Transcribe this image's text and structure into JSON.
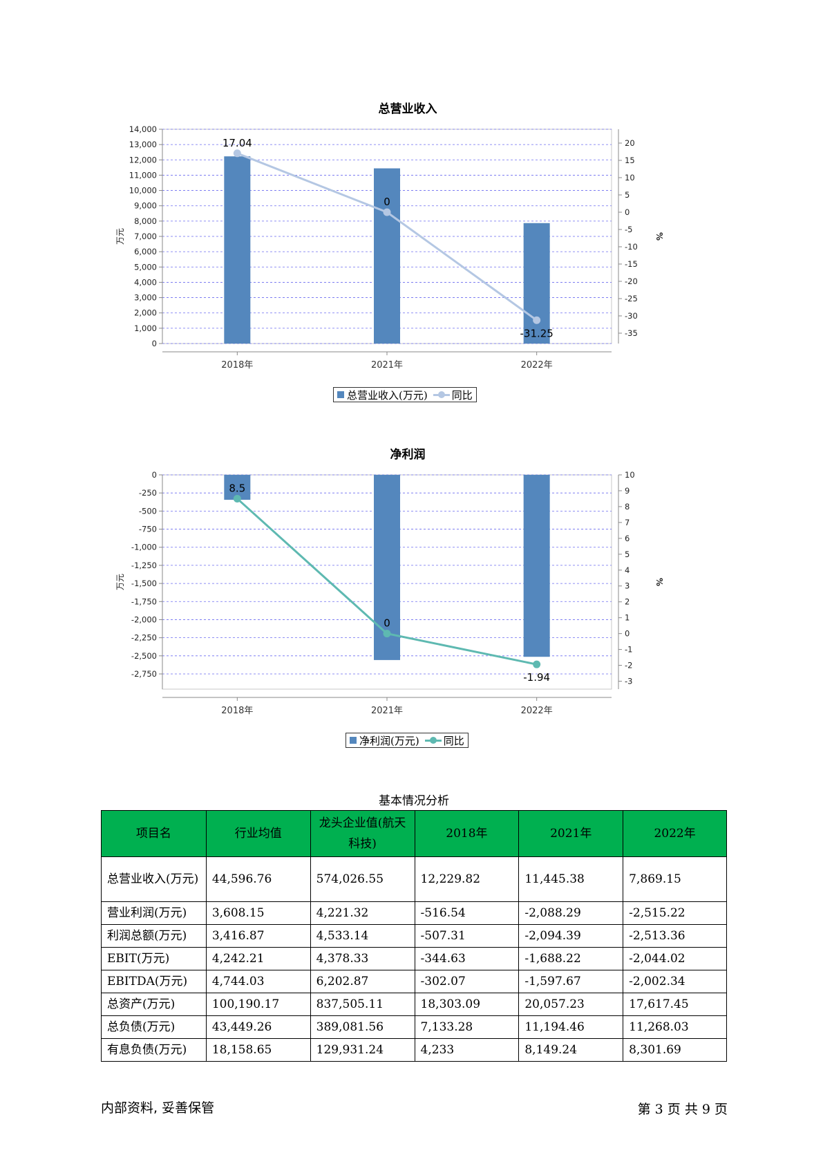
{
  "charts": {
    "revenue": {
      "title": "总营业收入",
      "legend_bar": "总营业收入(万元)",
      "legend_line": "同比",
      "bar_color": "#5487bd",
      "line_color": "#b4c7e3"
    },
    "profit": {
      "title": "净利润",
      "legend_bar": "净利润(万元)",
      "legend_line": "同比",
      "bar_color": "#5487bd",
      "line_color": "#5eb9b1"
    }
  },
  "chart_data": [
    {
      "type": "bar",
      "title": "总营业收入",
      "categories": [
        "2018年",
        "2021年",
        "2022年"
      ],
      "series": [
        {
          "name": "总营业收入(万元)",
          "axis": "left",
          "values": [
            12229.82,
            11445.38,
            7869.15
          ]
        },
        {
          "name": "同比",
          "type": "line",
          "axis": "right",
          "values": [
            17.04,
            0,
            -31.25
          ],
          "labels": [
            "17.04",
            "0",
            "-31.25"
          ]
        }
      ],
      "ylabel": "万元",
      "y2label": "%",
      "ylim": [
        0,
        14000
      ],
      "yticks": [
        "0",
        "1,000",
        "2,000",
        "3,000",
        "4,000",
        "5,000",
        "6,000",
        "7,000",
        "8,000",
        "9,000",
        "10,000",
        "11,000",
        "12,000",
        "13,000",
        "14,000"
      ],
      "y2lim": [
        -38,
        24
      ],
      "y2ticks": [
        "-35",
        "-30",
        "-25",
        "-20",
        "-15",
        "-10",
        "-5",
        "0",
        "5",
        "10",
        "15",
        "20"
      ],
      "grid": true,
      "legend": "bottom"
    },
    {
      "type": "bar",
      "title": "净利润",
      "categories": [
        "2018年",
        "2021年",
        "2022年"
      ],
      "series": [
        {
          "name": "净利润(万元)",
          "axis": "left",
          "values": [
            -344.63,
            -2558,
            -2513.36
          ]
        },
        {
          "name": "同比",
          "type": "line",
          "axis": "right",
          "values": [
            8.5,
            0,
            -1.94
          ],
          "labels": [
            "8.5",
            "0",
            "-1.94"
          ]
        }
      ],
      "ylabel": "万元",
      "y2label": "%",
      "ylim": [
        -2960,
        0
      ],
      "yticks": [
        "0",
        "-250",
        "-500",
        "-750",
        "-1,000",
        "-1,250",
        "-1,500",
        "-1,750",
        "-2,000",
        "-2,250",
        "-2,500",
        "-2,750"
      ],
      "y2lim": [
        -3.5,
        10
      ],
      "y2ticks": [
        "10",
        "9",
        "8",
        "7",
        "6",
        "5",
        "4",
        "3",
        "2",
        "1",
        "0",
        "-1",
        "-2",
        "-3"
      ],
      "grid": true,
      "legend": "bottom"
    }
  ],
  "table": {
    "title": "基本情况分析",
    "headers": [
      "项目名",
      "行业均值",
      "龙头企业值(航天科技)",
      "2018年",
      "2021年",
      "2022年"
    ],
    "rows": [
      [
        "总营业收入(万元)",
        "44,596.76",
        "574,026.55",
        "12,229.82",
        "11,445.38",
        "7,869.15"
      ],
      [
        "营业利润(万元)",
        "3,608.15",
        "4,221.32",
        "-516.54",
        "-2,088.29",
        "-2,515.22"
      ],
      [
        "利润总额(万元)",
        "3,416.87",
        "4,533.14",
        "-507.31",
        "-2,094.39",
        "-2,513.36"
      ],
      [
        "EBIT(万元)",
        "4,242.21",
        "4,378.33",
        "-344.63",
        "-1,688.22",
        "-2,044.02"
      ],
      [
        "EBITDA(万元)",
        "4,744.03",
        "6,202.87",
        "-302.07",
        "-1,597.67",
        "-2,002.34"
      ],
      [
        "总资产(万元)",
        "100,190.17",
        "837,505.11",
        "18,303.09",
        "20,057.23",
        "17,617.45"
      ],
      [
        "总负债(万元)",
        "43,449.26",
        "389,081.56",
        "7,133.28",
        "11,194.46",
        "11,268.03"
      ],
      [
        "有息负债(万元)",
        "18,158.65",
        "129,931.24",
        "4,233",
        "8,149.24",
        "8,301.69"
      ]
    ]
  },
  "footer": {
    "left": "内部资料, 妥善保管",
    "right": "第 3 页  共 9 页"
  }
}
